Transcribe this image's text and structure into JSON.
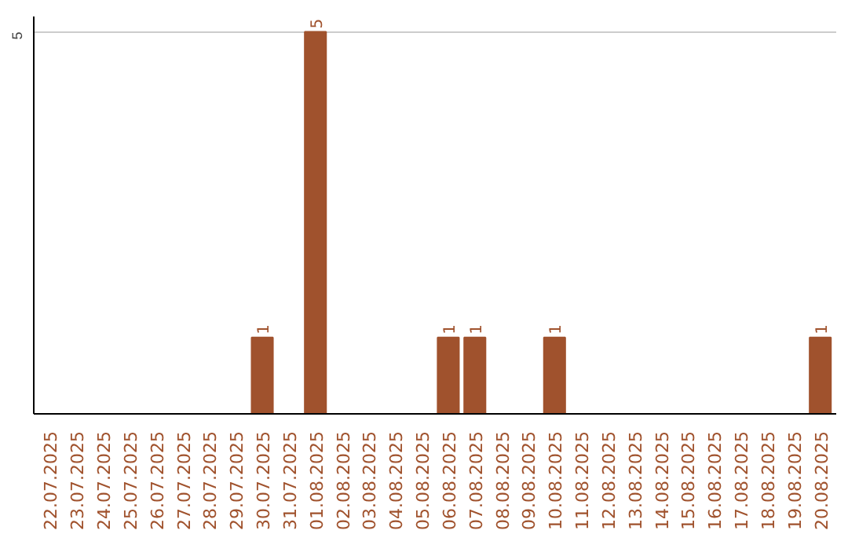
{
  "chart_data": {
    "type": "bar",
    "categories": [
      "22.07.2025",
      "23.07.2025",
      "24.07.2025",
      "25.07.2025",
      "26.07.2025",
      "27.07.2025",
      "28.07.2025",
      "29.07.2025",
      "30.07.2025",
      "31.07.2025",
      "01.08.2025",
      "02.08.2025",
      "03.08.2025",
      "04.08.2025",
      "05.08.2025",
      "06.08.2025",
      "07.08.2025",
      "08.08.2025",
      "09.08.2025",
      "10.08.2025",
      "11.08.2025",
      "12.08.2025",
      "13.08.2025",
      "14.08.2025",
      "15.08.2025",
      "16.08.2025",
      "17.08.2025",
      "18.08.2025",
      "19.08.2025",
      "20.08.2025"
    ],
    "values": [
      0,
      0,
      0,
      0,
      0,
      0,
      0,
      0,
      1,
      0,
      5,
      0,
      0,
      0,
      0,
      1,
      1,
      0,
      0,
      1,
      0,
      0,
      0,
      0,
      0,
      0,
      0,
      0,
      0,
      1
    ],
    "value_labels": [
      null,
      null,
      null,
      null,
      null,
      null,
      null,
      null,
      "1",
      null,
      "5",
      null,
      null,
      null,
      null,
      "1",
      "1",
      null,
      null,
      "1",
      null,
      null,
      null,
      null,
      null,
      null,
      null,
      null,
      null,
      "1"
    ],
    "color": "#a0522d",
    "ylim": [
      0,
      5.2
    ],
    "yticks": [
      5
    ],
    "grid": "y"
  }
}
